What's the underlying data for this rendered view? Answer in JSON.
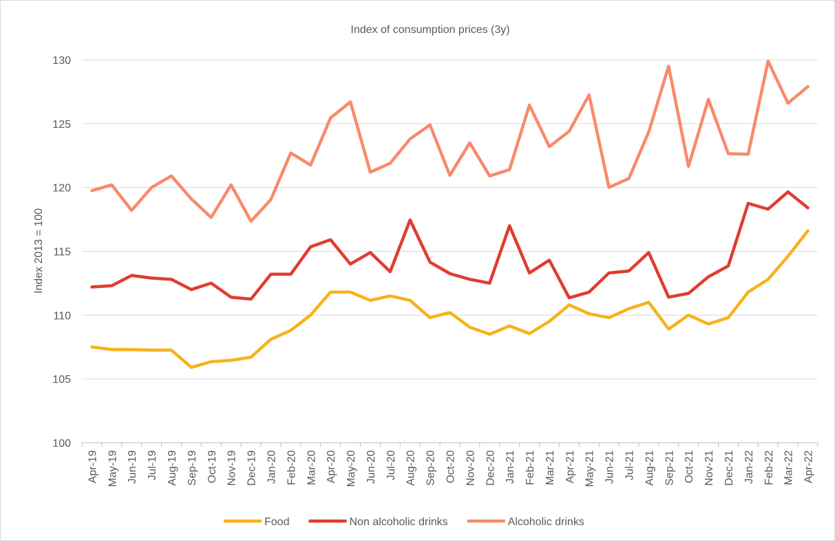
{
  "chart_data": {
    "type": "line",
    "title": "Index of consumption prices (3y)",
    "y_label": "Index 2013 = 100",
    "categories": [
      "Apr-19",
      "May-19",
      "Jun-19",
      "Jul-19",
      "Aug-19",
      "Sep-19",
      "Oct-19",
      "Nov-19",
      "Dec-19",
      "Jan-20",
      "Feb-20",
      "Mar-20",
      "Apr-20",
      "May-20",
      "Jun-20",
      "Jul-20",
      "Aug-20",
      "Sep-20",
      "Oct-20",
      "Nov-20",
      "Dec-20",
      "Jan-21",
      "Feb-21",
      "Mar-21",
      "Apr-21",
      "May-21",
      "Jun-21",
      "Jul-21",
      "Aug-21",
      "Sep-21",
      "Oct-21",
      "Nov-21",
      "Dec-21",
      "Jan-22",
      "Feb-22",
      "Mar-22",
      "Apr-22"
    ],
    "series": [
      {
        "name": "Food",
        "color": "#f7b21b",
        "values": [
          107.5,
          107.3,
          107.3,
          107.25,
          107.25,
          105.9,
          106.35,
          106.45,
          106.7,
          108.1,
          108.8,
          110.0,
          111.8,
          111.8,
          111.15,
          111.5,
          111.15,
          109.8,
          110.2,
          109.05,
          108.5,
          109.15,
          108.55,
          109.5,
          110.8,
          110.1,
          109.8,
          110.5,
          111.0,
          108.9,
          110.0,
          109.3,
          109.8,
          111.8,
          112.8,
          114.6,
          116.6
        ]
      },
      {
        "name": "Non alcoholic drinks",
        "color": "#e03c31",
        "values": [
          112.2,
          112.3,
          113.1,
          112.9,
          112.8,
          112.0,
          112.5,
          111.4,
          111.25,
          113.2,
          113.2,
          115.35,
          115.9,
          114.0,
          114.9,
          113.4,
          117.45,
          114.15,
          113.25,
          112.8,
          112.5,
          117.0,
          113.3,
          114.3,
          111.35,
          111.8,
          113.3,
          113.45,
          114.9,
          111.4,
          111.7,
          113.0,
          113.85,
          118.75,
          118.3,
          119.65,
          118.4
        ]
      },
      {
        "name": "Alcoholic drinks",
        "color": "#f98a6b",
        "values": [
          119.75,
          120.2,
          118.2,
          120.0,
          120.9,
          119.1,
          117.65,
          120.2,
          117.35,
          119.05,
          122.7,
          121.75,
          125.45,
          126.7,
          121.2,
          121.9,
          123.8,
          124.9,
          120.95,
          123.5,
          120.9,
          121.4,
          126.45,
          123.2,
          124.4,
          127.25,
          120.0,
          120.7,
          124.35,
          129.5,
          121.65,
          126.9,
          122.65,
          122.6,
          129.9,
          126.6,
          127.9
        ]
      }
    ],
    "ylim": [
      100,
      130
    ],
    "yticks": [
      100,
      105,
      110,
      115,
      120,
      125,
      130
    ],
    "grid": true,
    "legend": "bottom"
  }
}
